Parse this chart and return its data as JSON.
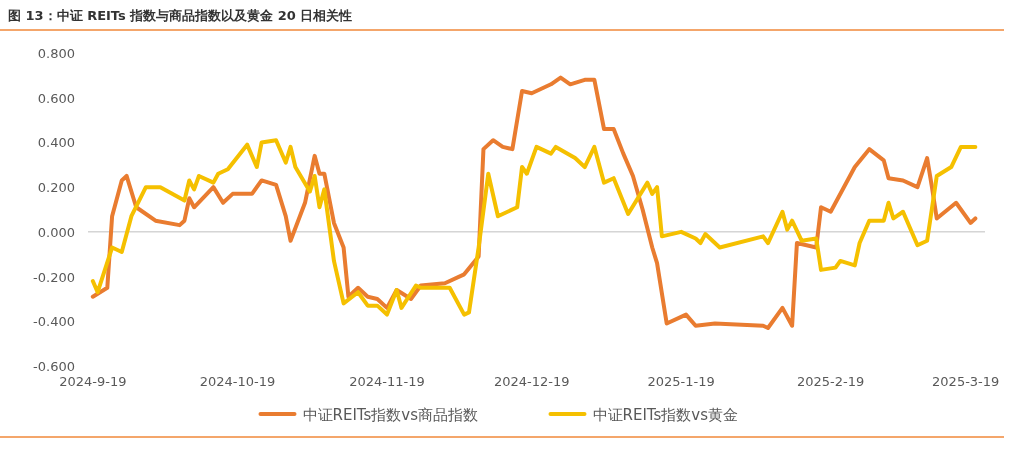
{
  "chart_data": {
    "type": "line",
    "title": "图 13：中证 REITs 指数与商品指数以及黄金 20 日相关性",
    "xlim": [
      "2024-09-18",
      "2025-03-23"
    ],
    "xticks": [
      {
        "value": "2024-09-19",
        "label": "2024-9-19"
      },
      {
        "value": "2024-10-19",
        "label": "2024-10-19"
      },
      {
        "value": "2024-11-19",
        "label": "2024-11-19"
      },
      {
        "value": "2024-12-19",
        "label": "2024-12-19"
      },
      {
        "value": "2025-01-19",
        "label": "2025-1-19"
      },
      {
        "value": "2025-02-19",
        "label": "2025-2-19"
      },
      {
        "value": "2025-03-19",
        "label": "2025-3-19"
      }
    ],
    "ylim": [
      -0.6,
      0.8
    ],
    "yticks": [
      {
        "value": -0.6,
        "label": "-0.600"
      },
      {
        "value": -0.4,
        "label": "-0.400"
      },
      {
        "value": -0.2,
        "label": "-0.200"
      },
      {
        "value": 0,
        "label": "0.000"
      },
      {
        "value": 0.2,
        "label": "0.200"
      },
      {
        "value": 0.4,
        "label": "0.400"
      },
      {
        "value": 0.6,
        "label": "0.600"
      },
      {
        "value": 0.8,
        "label": "0.800"
      }
    ],
    "grid": false,
    "ref_lines": [
      {
        "axis": "y",
        "value": 0,
        "color": "#bfbfbf"
      }
    ],
    "legend": "bottom",
    "marker": "none",
    "line_style": "solid",
    "series": [
      {
        "name": "中证REITs指数vs商品指数",
        "color": "#e97c30",
        "x": [
          "2024-09-19",
          "2024-09-22",
          "2024-09-23",
          "2024-09-25",
          "2024-09-26",
          "2024-09-28",
          "2024-10-02",
          "2024-10-07",
          "2024-10-08",
          "2024-10-09",
          "2024-10-10",
          "2024-10-14",
          "2024-10-16",
          "2024-10-18",
          "2024-10-22",
          "2024-10-24",
          "2024-10-27",
          "2024-10-29",
          "2024-10-30",
          "2024-11-02",
          "2024-11-04",
          "2024-11-05",
          "2024-11-06",
          "2024-11-08",
          "2024-11-10",
          "2024-11-11",
          "2024-11-13",
          "2024-11-15",
          "2024-11-17",
          "2024-11-19",
          "2024-11-21",
          "2024-11-24",
          "2024-11-26",
          "2024-12-01",
          "2024-12-05",
          "2024-12-08",
          "2024-12-09",
          "2024-12-11",
          "2024-12-13",
          "2024-12-15",
          "2024-12-17",
          "2024-12-19",
          "2024-12-23",
          "2024-12-25",
          "2024-12-27",
          "2024-12-30",
          "2025-01-01",
          "2025-01-03",
          "2025-01-05",
          "2025-01-07",
          "2025-01-09",
          "2025-01-11",
          "2025-01-13",
          "2025-01-14",
          "2025-01-16",
          "2025-01-20",
          "2025-01-22",
          "2025-01-26",
          "2025-02-05",
          "2025-02-06",
          "2025-02-09",
          "2025-02-11",
          "2025-02-12",
          "2025-02-16",
          "2025-02-17",
          "2025-02-19",
          "2025-02-24",
          "2025-02-27",
          "2025-03-02",
          "2025-03-03",
          "2025-03-06",
          "2025-03-09",
          "2025-03-11",
          "2025-03-12",
          "2025-03-13",
          "2025-03-17",
          "2025-03-20",
          "2025-03-21"
        ],
        "values": [
          -0.29,
          -0.25,
          0.07,
          0.23,
          0.25,
          0.11,
          0.05,
          0.03,
          0.05,
          0.15,
          0.11,
          0.2,
          0.13,
          0.17,
          0.17,
          0.23,
          0.21,
          0.07,
          -0.04,
          0.13,
          0.34,
          0.26,
          0.26,
          0.04,
          -0.07,
          -0.29,
          -0.25,
          -0.29,
          -0.3,
          -0.34,
          -0.26,
          -0.3,
          -0.24,
          -0.23,
          -0.19,
          -0.11,
          0.37,
          0.41,
          0.38,
          0.37,
          0.63,
          0.62,
          0.66,
          0.69,
          0.66,
          0.68,
          0.68,
          0.46,
          0.46,
          0.35,
          0.25,
          0.1,
          -0.07,
          -0.14,
          -0.41,
          -0.37,
          -0.42,
          -0.41,
          -0.42,
          -0.43,
          -0.34,
          -0.42,
          -0.05,
          -0.07,
          0.11,
          0.09,
          0.29,
          0.37,
          0.32,
          0.24,
          0.23,
          0.2,
          0.33,
          0.2,
          0.06,
          0.13,
          0.04,
          0.06
        ]
      },
      {
        "name": "中证REITs指数vs黄金",
        "color": "#f5c000",
        "x": [
          "2024-09-19",
          "2024-09-20",
          "2024-09-23",
          "2024-09-25",
          "2024-09-27",
          "2024-09-30",
          "2024-10-03",
          "2024-10-08",
          "2024-10-09",
          "2024-10-10",
          "2024-10-11",
          "2024-10-14",
          "2024-10-15",
          "2024-10-17",
          "2024-10-21",
          "2024-10-23",
          "2024-10-24",
          "2024-10-27",
          "2024-10-29",
          "2024-10-30",
          "2024-10-31",
          "2024-11-03",
          "2024-11-04",
          "2024-11-05",
          "2024-11-06",
          "2024-11-08",
          "2024-11-10",
          "2024-11-13",
          "2024-11-15",
          "2024-11-17",
          "2024-11-19",
          "2024-11-21",
          "2024-11-22",
          "2024-11-25",
          "2024-11-26",
          "2024-12-02",
          "2024-12-05",
          "2024-12-06",
          "2024-12-08",
          "2024-12-10",
          "2024-12-12",
          "2024-12-16",
          "2024-12-17",
          "2024-12-18",
          "2024-12-20",
          "2024-12-23",
          "2024-12-24",
          "2024-12-28",
          "2024-12-30",
          "2025-01-01",
          "2025-01-03",
          "2025-01-05",
          "2025-01-08",
          "2025-01-12",
          "2025-01-13",
          "2025-01-14",
          "2025-01-15",
          "2025-01-19",
          "2025-01-22",
          "2025-01-23",
          "2025-01-24",
          "2025-01-27",
          "2025-02-05",
          "2025-02-06",
          "2025-02-09",
          "2025-02-10",
          "2025-02-11",
          "2025-02-13",
          "2025-02-16",
          "2025-02-17",
          "2025-02-20",
          "2025-02-21",
          "2025-02-24",
          "2025-02-25",
          "2025-02-27",
          "2025-03-02",
          "2025-03-03",
          "2025-03-04",
          "2025-03-06",
          "2025-03-09",
          "2025-03-11",
          "2025-03-13",
          "2025-03-16",
          "2025-03-18",
          "2025-03-21"
        ],
        "values": [
          -0.22,
          -0.27,
          -0.07,
          -0.09,
          0.07,
          0.2,
          0.2,
          0.14,
          0.23,
          0.19,
          0.25,
          0.22,
          0.26,
          0.28,
          0.39,
          0.29,
          0.4,
          0.41,
          0.31,
          0.38,
          0.29,
          0.18,
          0.25,
          0.11,
          0.19,
          -0.13,
          -0.32,
          -0.27,
          -0.33,
          -0.33,
          -0.37,
          -0.26,
          -0.34,
          -0.24,
          -0.25,
          -0.25,
          -0.37,
          -0.36,
          -0.07,
          0.26,
          0.07,
          0.11,
          0.29,
          0.26,
          0.38,
          0.35,
          0.38,
          0.33,
          0.29,
          0.38,
          0.22,
          0.24,
          0.08,
          0.22,
          0.17,
          0.2,
          -0.02,
          0,
          -0.03,
          -0.05,
          -0.01,
          -0.07,
          -0.02,
          -0.05,
          0.09,
          0.01,
          0.05,
          -0.04,
          -0.03,
          -0.17,
          -0.16,
          -0.13,
          -0.15,
          -0.05,
          0.05,
          0.05,
          0.13,
          0.06,
          0.09,
          -0.06,
          -0.04,
          0.25,
          0.29,
          0.38,
          0.38
        ]
      }
    ]
  }
}
